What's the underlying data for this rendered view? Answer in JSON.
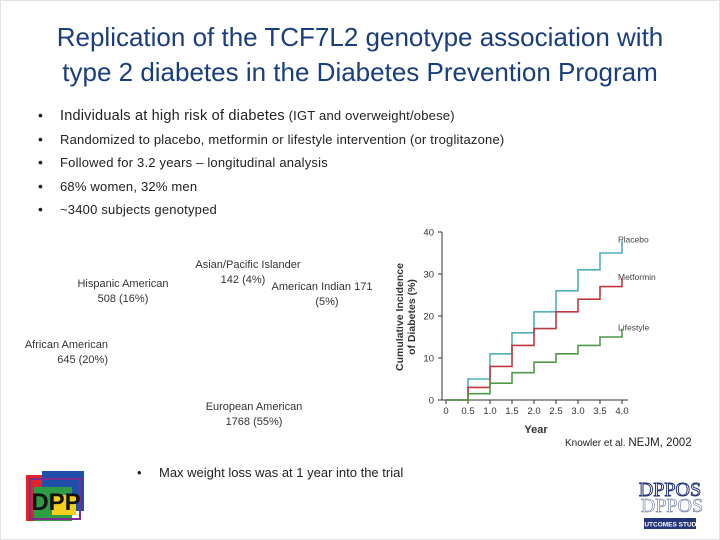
{
  "title": {
    "line1": "Replication of the TCF7L2 genotype association with",
    "line2": "type 2 diabetes in the Diabetes Prevention Program"
  },
  "bullets": [
    {
      "big": "Individuals at high risk of diabetes",
      "rest": " (IGT and overweight/obese)"
    },
    {
      "big": "",
      "rest": "Randomized to placebo, metformin or lifestyle intervention (or troglitazone)"
    },
    {
      "big": "",
      "rest": "Followed for 3.2 years – longitudinal analysis"
    },
    {
      "big": "",
      "rest": "68% women, 32% men"
    },
    {
      "big": "",
      "rest": "~3400 subjects genotyped"
    }
  ],
  "bullet_marker": "•",
  "ethnicity": {
    "asian": {
      "line1": "Asian/Pacific Islander",
      "line2": "142 (4%)"
    },
    "american_indian": {
      "line1": "American Indian 171",
      "line2": "(5%)"
    },
    "hispanic": {
      "line1": "Hispanic American",
      "line2": "508 (16%)"
    },
    "african": {
      "line1": "African American",
      "line2": "645 (20%)"
    },
    "european": {
      "line1": "European American",
      "line2": "1768 (55%)"
    }
  },
  "chart_data": {
    "type": "line",
    "step": true,
    "title": "",
    "xlabel": "Year",
    "ylabel": "Cumulative Incidence of Diabetes (%)",
    "ylabel_line1": "Cumulative Incidence",
    "ylabel_line2": "of Diabetes (%)",
    "xlim": [
      0,
      4.0
    ],
    "ylim": [
      0,
      40
    ],
    "xticks": [
      "0",
      "0.5",
      "1.0",
      "1.5",
      "2.0",
      "2.5",
      "3.0",
      "3.5",
      "4.0"
    ],
    "xtick_values": [
      0,
      0.5,
      1.0,
      1.5,
      2.0,
      2.5,
      3.0,
      3.5,
      4.0
    ],
    "yticks": [
      "0",
      "10",
      "20",
      "30",
      "40"
    ],
    "ytick_values": [
      0,
      10,
      20,
      30,
      40
    ],
    "x": [
      0,
      0.5,
      1.0,
      1.5,
      2.0,
      2.5,
      3.0,
      3.5,
      4.0
    ],
    "series": [
      {
        "name": "Placebo",
        "color": "#4fb0b8",
        "values": [
          0,
          5,
          11,
          16,
          21,
          26,
          31,
          35,
          38
        ]
      },
      {
        "name": "Metformin",
        "color": "#c0393f",
        "values": [
          0,
          3,
          8,
          13,
          17,
          21,
          24,
          27,
          29
        ]
      },
      {
        "name": "Lifestyle",
        "color": "#4f9a4a",
        "values": [
          0,
          1.5,
          4,
          6.5,
          9,
          11,
          13,
          15,
          17
        ]
      }
    ]
  },
  "citation": {
    "small": "Knowler et al. ",
    "big": "NEJM, 2002"
  },
  "bottom_bullet": "Max weight loss was at 1 year into the trial",
  "logo_left": {
    "text": "DPP"
  },
  "logo_right": {
    "text": "DPPOS",
    "tagline": "OUTCOMES STUDY"
  },
  "colors": {
    "title": "#1a3d7c",
    "placebo": "#4fb0b8",
    "metformin": "#c0393f",
    "lifestyle": "#4f9a4a"
  }
}
